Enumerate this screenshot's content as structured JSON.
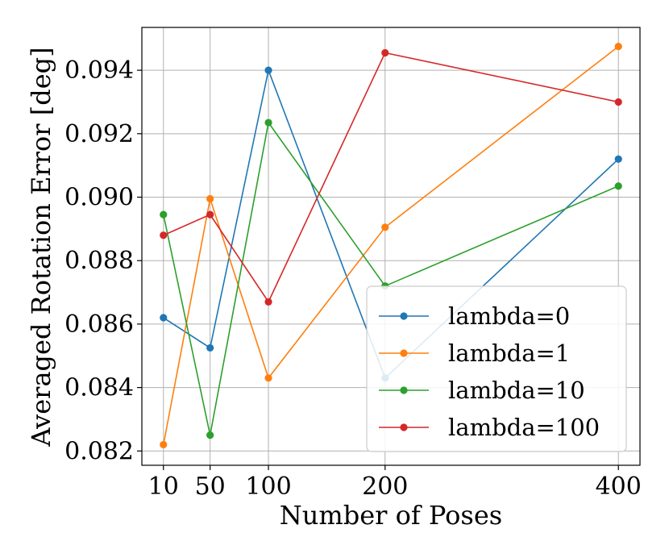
{
  "chart_data": {
    "type": "line",
    "title": "",
    "xlabel": "Number of Poses",
    "ylabel": "Averaged Rotation Error [deg]",
    "x": [
      10,
      50,
      100,
      200,
      400
    ],
    "x_tick_labels": [
      "10",
      "50",
      "100",
      "200",
      "400"
    ],
    "y_ticks": [
      0.082,
      0.084,
      0.086,
      0.088,
      0.09,
      0.092,
      0.094
    ],
    "y_tick_labels": [
      "0.082",
      "0.084",
      "0.086",
      "0.088",
      "0.090",
      "0.092",
      "0.094"
    ],
    "xlim": [
      -8.5,
      418.5
    ],
    "ylim": [
      0.08155,
      0.09535
    ],
    "grid": true,
    "legend_position": "lower-right",
    "series": [
      {
        "name": "lambda=0",
        "color": "#1f77b4",
        "values": [
          0.0862,
          0.08525,
          0.094,
          0.0843,
          0.0912
        ]
      },
      {
        "name": "lambda=1",
        "color": "#ff7f0e",
        "values": [
          0.0822,
          0.08995,
          0.0843,
          0.08905,
          0.09475
        ]
      },
      {
        "name": "lambda=10",
        "color": "#2ca02c",
        "values": [
          0.08945,
          0.0825,
          0.09235,
          0.0872,
          0.09035
        ]
      },
      {
        "name": "lambda=100",
        "color": "#d62728",
        "values": [
          0.0888,
          0.08945,
          0.0867,
          0.09455,
          0.093
        ]
      }
    ]
  }
}
